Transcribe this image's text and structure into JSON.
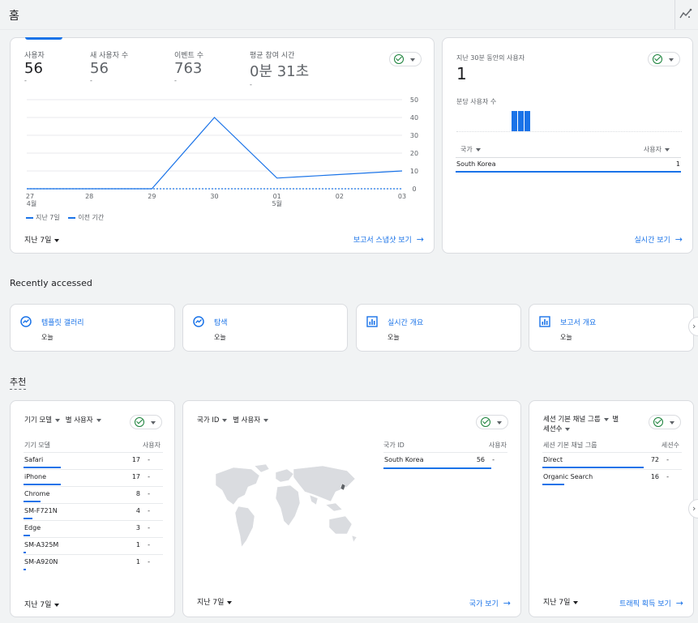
{
  "page": {
    "title": "홈"
  },
  "overview": {
    "metrics": [
      {
        "label": "사용자",
        "value": "56",
        "delta": "-"
      },
      {
        "label": "새 사용자 수",
        "value": "56",
        "delta": "-"
      },
      {
        "label": "이벤트 수",
        "value": "763",
        "delta": "-"
      },
      {
        "label": "평균 참여 시간",
        "value": "0분 31초",
        "delta": "-"
      }
    ],
    "legend": {
      "current": "지난 7일",
      "previous": "이전 기간"
    },
    "range": "지난 7일",
    "link": "보고서 스냅샷 보기"
  },
  "chart_data": {
    "type": "line",
    "categories": [
      "27\n4월",
      "28",
      "29",
      "30",
      "01\n5월",
      "02",
      "03"
    ],
    "x_tick_labels": [
      "27",
      "28",
      "29",
      "30",
      "01",
      "02",
      "03"
    ],
    "x_month_labels": [
      {
        "index": 0,
        "label": "4월"
      },
      {
        "index": 4,
        "label": "5월"
      }
    ],
    "y_ticks": [
      50,
      40,
      30,
      20,
      10,
      0
    ],
    "ylim": [
      0,
      50
    ],
    "series": [
      {
        "name": "지난 7일",
        "values": [
          0,
          0,
          0,
          40,
          6,
          8,
          10
        ],
        "color": "#1a73e8",
        "style": "solid"
      },
      {
        "name": "이전 기간",
        "values": [
          0,
          0,
          0,
          0,
          0,
          0,
          0
        ],
        "color": "#1a73e8",
        "style": "dashed"
      }
    ],
    "grid": true,
    "legend_position": "bottom-left"
  },
  "realtime": {
    "title": "지난 30분 동안의 사용자",
    "value": "1",
    "sub_title": "분당 사용자 수",
    "col_country": "국가",
    "col_users": "사용자",
    "rows": [
      {
        "name": "South Korea",
        "value": "1"
      }
    ],
    "link": "실시간 보기"
  },
  "recent": {
    "heading": "Recently accessed",
    "items": [
      {
        "title": "템플릿 갤러리",
        "sub": "오늘",
        "icon": "explore-icon"
      },
      {
        "title": "탐색",
        "sub": "오늘",
        "icon": "explore-icon"
      },
      {
        "title": "실시간 개요",
        "sub": "오늘",
        "icon": "report-icon"
      },
      {
        "title": "보고서 개요",
        "sub": "오늘",
        "icon": "report-icon"
      }
    ]
  },
  "suggested": {
    "heading": "추천",
    "device": {
      "dim": "기기 모델",
      "by": "별 사용자",
      "col_name": "기기 모델",
      "col_value": "사용자",
      "rows": [
        {
          "name": "Safari",
          "value": "17",
          "delta": "-",
          "share": 0.3
        },
        {
          "name": "iPhone",
          "value": "17",
          "delta": "-",
          "share": 0.3
        },
        {
          "name": "Chrome",
          "value": "8",
          "delta": "-",
          "share": 0.14
        },
        {
          "name": "SM-F721N",
          "value": "4",
          "delta": "-",
          "share": 0.07
        },
        {
          "name": "Edge",
          "value": "3",
          "delta": "-",
          "share": 0.05
        },
        {
          "name": "SM-A325M",
          "value": "1",
          "delta": "-",
          "share": 0.02
        },
        {
          "name": "SM-A920N",
          "value": "1",
          "delta": "-",
          "share": 0.02
        }
      ],
      "range": "지난 7일"
    },
    "country": {
      "dim": "국가 ID",
      "by": "별 사용자",
      "col_name": "국가 ID",
      "col_value": "사용자",
      "rows": [
        {
          "name": "South Korea",
          "value": "56",
          "delta": "-",
          "share": 1.0
        }
      ],
      "range": "지난 7일",
      "link": "국가 보기"
    },
    "channel": {
      "dim": "세션 기본 채널 그룹",
      "by": "별",
      "by2": "세션수",
      "col_name": "세션 기본 채널 그룹",
      "col_value": "세션수",
      "rows": [
        {
          "name": "Direct",
          "value": "72",
          "delta": "-",
          "share": 0.82
        },
        {
          "name": "Organic Search",
          "value": "16",
          "delta": "-",
          "share": 0.18
        }
      ],
      "range": "지난 7일",
      "link": "트래픽 획득 보기"
    }
  },
  "colors": {
    "accent": "#1a73e8",
    "success": "#188038",
    "map_land": "#dadce0"
  }
}
